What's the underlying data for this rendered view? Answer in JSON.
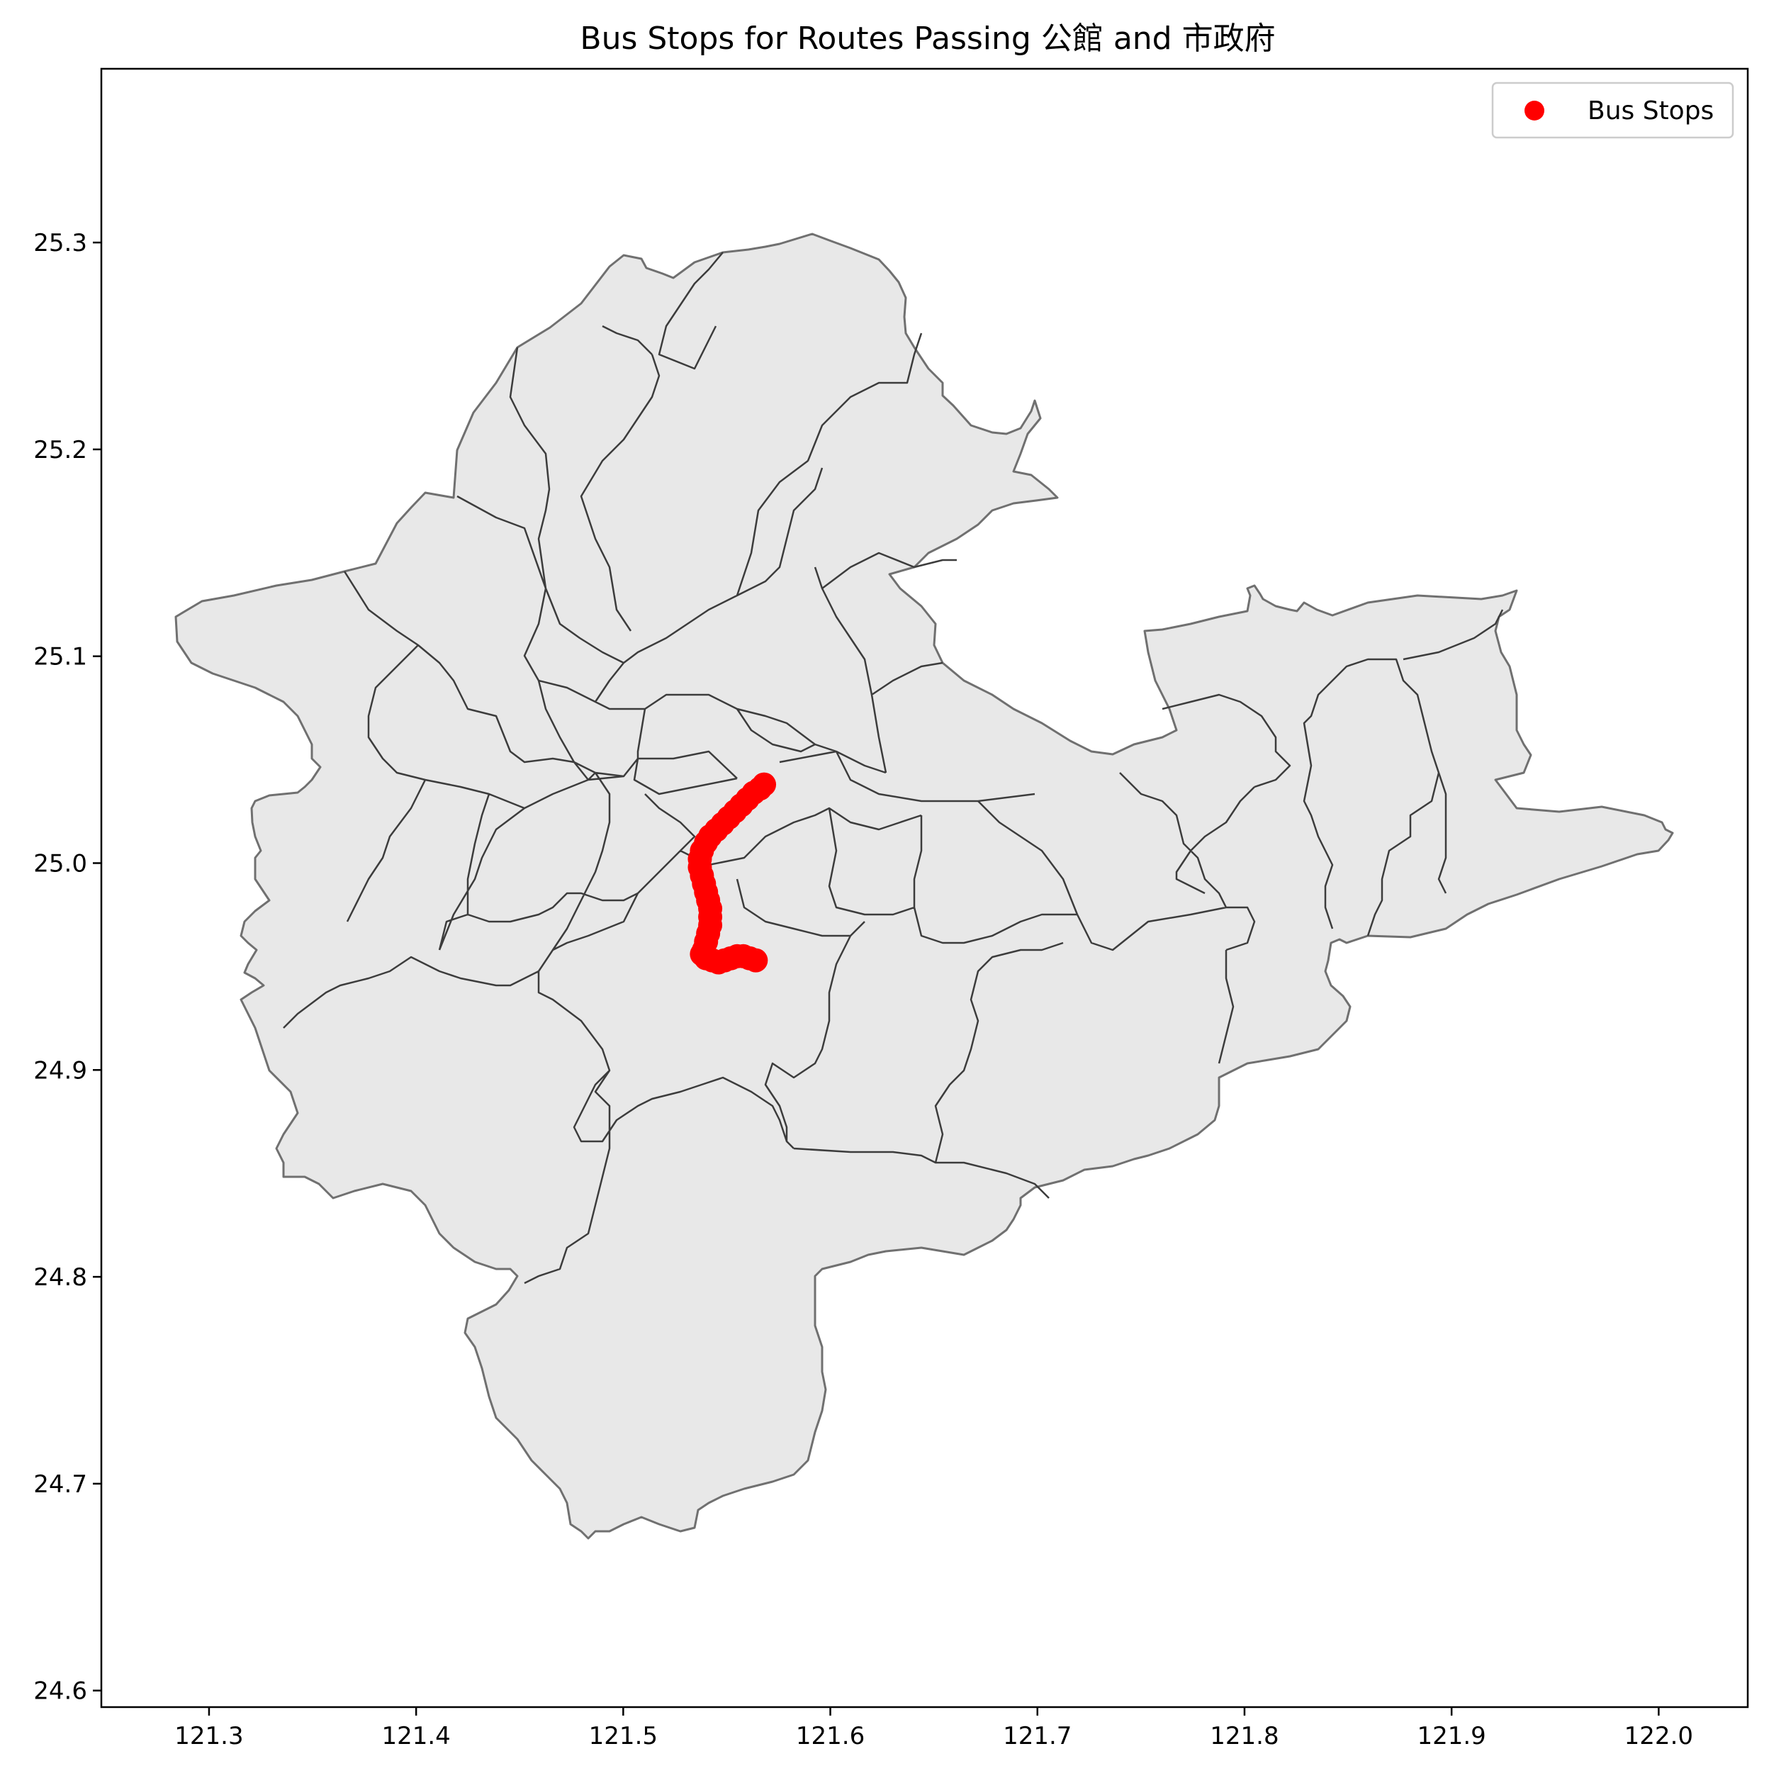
{
  "chart_data": {
    "type": "scatter",
    "title": "Bus Stops for Routes Passing 公館 and 市政府",
    "xlabel": "",
    "ylabel": "",
    "xlim": [
      121.248,
      122.043
    ],
    "ylim": [
      24.592,
      25.384
    ],
    "x_ticks": [
      "121.3",
      "121.4",
      "121.5",
      "121.6",
      "121.7",
      "121.8",
      "121.9",
      "122.0"
    ],
    "y_ticks": [
      "24.6",
      "24.7",
      "24.8",
      "24.9",
      "25.0",
      "25.1",
      "25.2",
      "25.3"
    ],
    "x_tick_values": [
      121.3,
      121.4,
      121.5,
      121.6,
      121.7,
      121.8,
      121.9,
      122.0
    ],
    "y_tick_values": [
      24.6,
      24.7,
      24.8,
      24.9,
      25.0,
      25.1,
      25.2,
      25.3
    ],
    "legend": {
      "placement": "top-right",
      "entries": [
        "Bus Stops"
      ]
    },
    "grid": false,
    "colors": {
      "stops": "#ff0000",
      "basemap_fill": "#e8e8e8",
      "basemap_edge": "#707070",
      "district_edge": "#3c3c3c"
    },
    "series": [
      {
        "name": "Bus Stops",
        "x": [
          121.568,
          121.566,
          121.563,
          121.56,
          121.557,
          121.554,
          121.551,
          121.548,
          121.545,
          121.542,
          121.54,
          121.538,
          121.537,
          121.537,
          121.538,
          121.539,
          121.54,
          121.541,
          121.542,
          121.542,
          121.542,
          121.541,
          121.54,
          121.539,
          121.538,
          121.54,
          121.543,
          121.546,
          121.549,
          121.552,
          121.555,
          121.558,
          121.561,
          121.564
        ],
        "y": [
          25.038,
          25.036,
          25.034,
          25.031,
          25.028,
          25.025,
          25.022,
          25.019,
          25.016,
          25.013,
          25.01,
          25.006,
          25.002,
          24.998,
          24.994,
          24.99,
          24.986,
          24.982,
          24.978,
          24.974,
          24.97,
          24.966,
          24.962,
          24.958,
          24.956,
          24.954,
          24.953,
          24.952,
          24.953,
          24.954,
          24.955,
          24.955,
          24.954,
          24.953
        ]
      }
    ]
  }
}
